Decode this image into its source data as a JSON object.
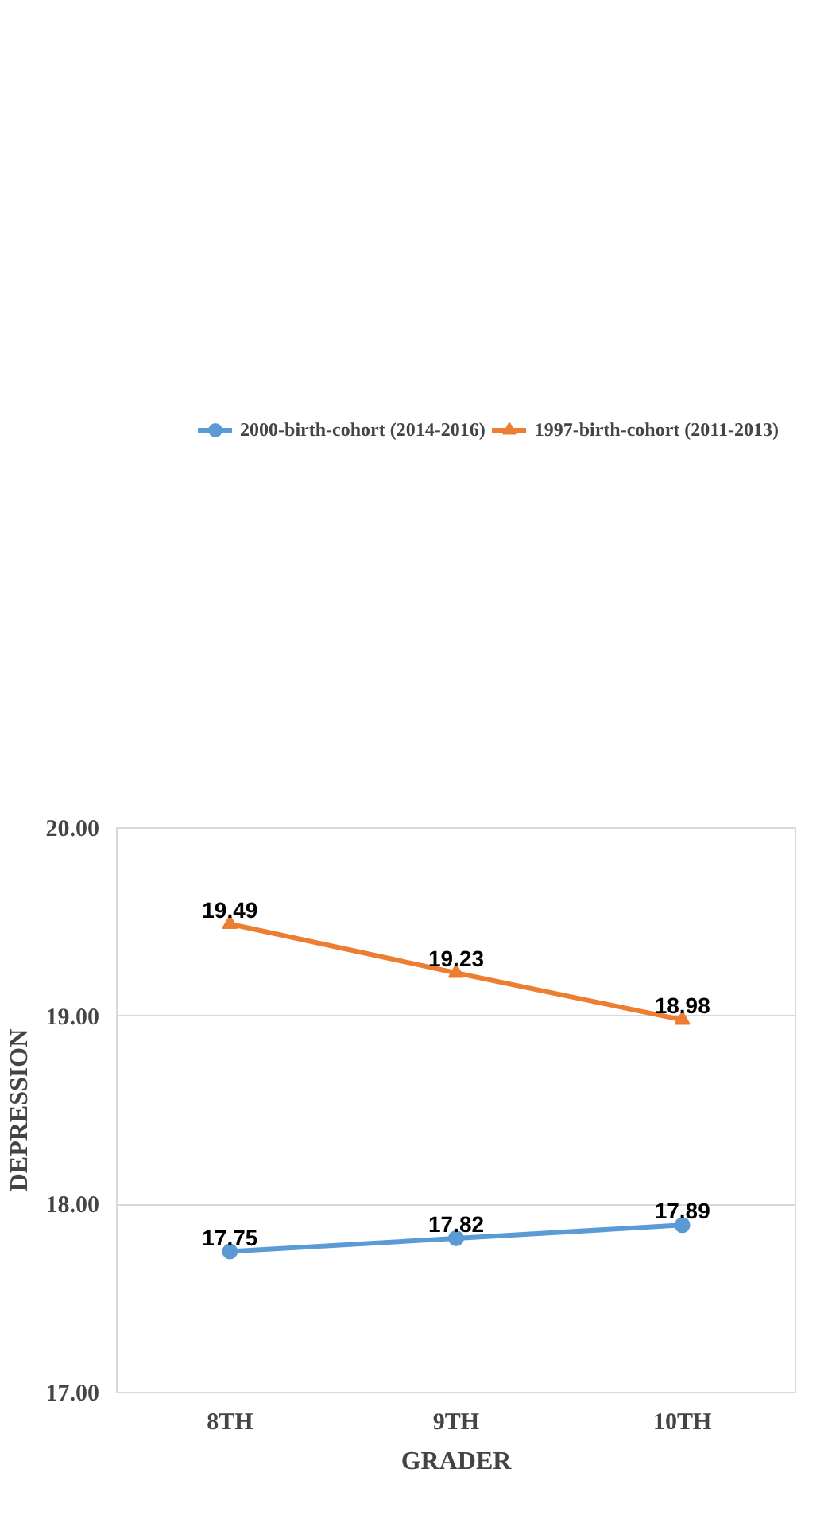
{
  "chart_data": {
    "type": "line",
    "ylabel": "DEPRESSION",
    "xlabel": "GRADER",
    "categories": [
      "8TH",
      "9TH",
      "10TH"
    ],
    "series": [
      {
        "name": "2000-birth-cohort (2014-2016)",
        "color": "#5b9bd5",
        "marker": "circle",
        "values": [
          17.75,
          17.82,
          17.89
        ]
      },
      {
        "name": "1997-birth-cohort (2011-2013)",
        "color": "#ed7d31",
        "marker": "triangle",
        "values": [
          19.49,
          19.23,
          18.98
        ]
      }
    ],
    "ylim": [
      17,
      20
    ],
    "yticks": [
      {
        "value": 17,
        "label": "17.00"
      },
      {
        "value": 18,
        "label": "18.00"
      },
      {
        "value": 19,
        "label": "19.00"
      },
      {
        "value": 20,
        "label": "20.00"
      }
    ],
    "grid": "y",
    "legend": "top",
    "data_labels": true
  }
}
